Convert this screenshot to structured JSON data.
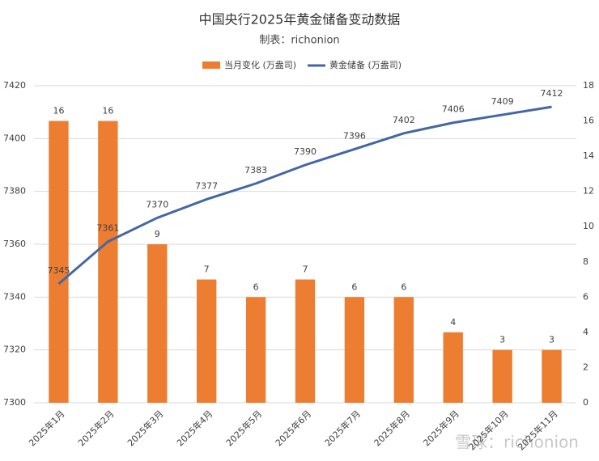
{
  "chart_data": {
    "type": "bar",
    "title": "中国央行2025年黄金储备变动数据",
    "subtitle": "制表：richonion",
    "watermark": "雪球：richonion",
    "categories": [
      "2025年1月",
      "2025年2月",
      "2025年3月",
      "2025年4月",
      "2025年5月",
      "2025年6月",
      "2025年7月",
      "2025年8月",
      "2025年9月",
      "2025年10月",
      "2025年11月"
    ],
    "series": [
      {
        "name": "当月变化 (万盎司)",
        "type": "bar",
        "axis": "y2",
        "color": "#ed7d31",
        "values": [
          16,
          16,
          9,
          7,
          6,
          7,
          6,
          6,
          4,
          3,
          3
        ]
      },
      {
        "name": "黄金储备 (万盎司)",
        "type": "line",
        "axis": "y",
        "color": "#4367a4",
        "values": [
          7345,
          7361,
          7370,
          7377,
          7383,
          7390,
          7396,
          7402,
          7406,
          7409,
          7412
        ]
      }
    ],
    "ylim": [
      7300,
      7420
    ],
    "yticks": [
      7300,
      7320,
      7340,
      7360,
      7380,
      7400,
      7420
    ],
    "y2lim": [
      0,
      18
    ],
    "y2ticks": [
      0,
      2,
      4,
      6,
      8,
      10,
      12,
      14,
      16,
      18
    ],
    "grid": true,
    "legend": "top"
  }
}
